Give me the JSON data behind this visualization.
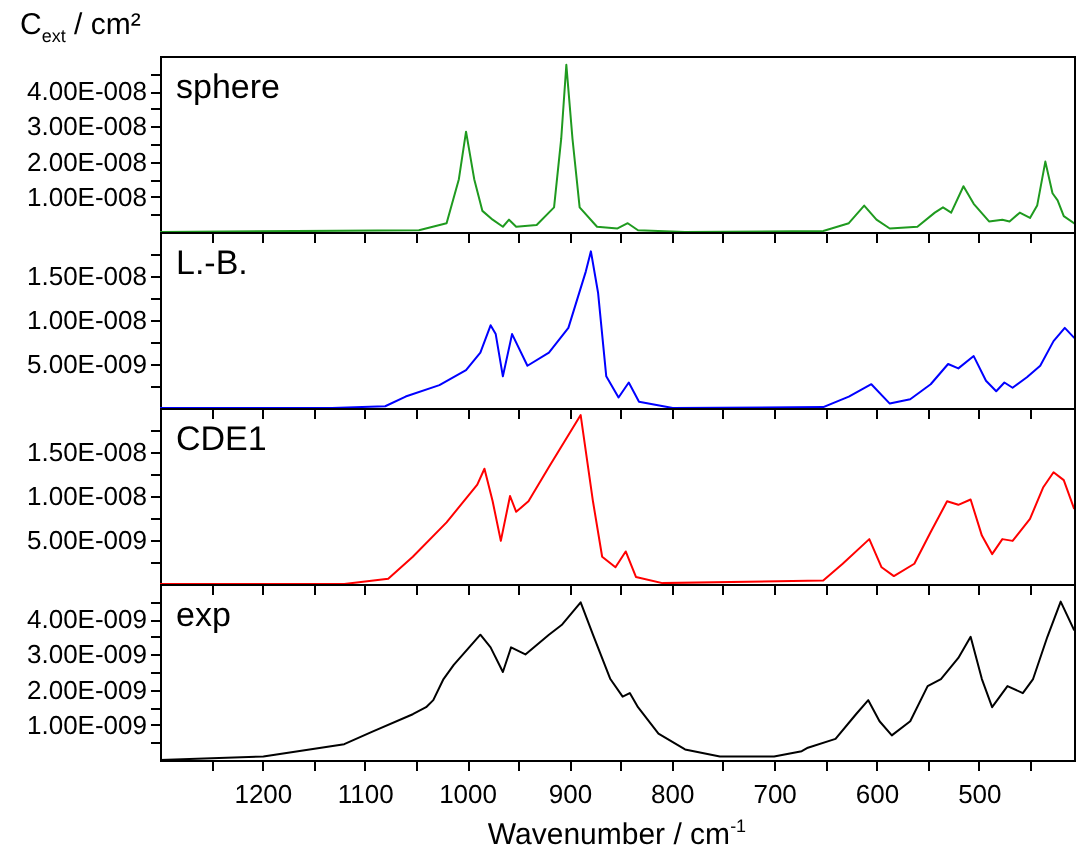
{
  "chart_data": [
    {
      "type": "line",
      "ylabel": "C$_{ext}$ / cm²",
      "xlim": [
        1300,
        407
      ],
      "ylim": [
        0,
        5e-08
      ],
      "tick_labels": "y",
      "line_style": "solid",
      "xticks": [
        1200,
        1100,
        1000,
        900,
        800,
        700,
        600,
        500,
        {
          "value": 1250,
          "label": null
        },
        {
          "value": 1150,
          "label": null
        },
        {
          "value": 1050,
          "label": null
        },
        {
          "value": 950,
          "label": null
        },
        {
          "value": 850,
          "label": null
        },
        {
          "value": 750,
          "label": null
        },
        {
          "value": 650,
          "label": null
        },
        {
          "value": 550,
          "label": null
        },
        {
          "value": 450,
          "label": null
        }
      ],
      "yticks": [
        {
          "value": 1e-08,
          "label": "1.00E-008"
        },
        {
          "value": 2e-08,
          "label": "2.00E-008"
        },
        {
          "value": 3e-08,
          "label": "3.00E-008"
        },
        {
          "value": 4e-08,
          "label": "4.00E-008"
        },
        {
          "value": 5e-09,
          "label": null
        },
        {
          "value": 1.5e-08,
          "label": null
        },
        {
          "value": 2.5e-08,
          "label": null
        },
        {
          "value": 3.5e-08,
          "label": null
        },
        {
          "value": 4.5e-08,
          "label": null
        }
      ],
      "x": [
        1300,
        1047,
        1020,
        1008,
        1001,
        993,
        985,
        975,
        965,
        959,
        952,
        932,
        915,
        908,
        903,
        897,
        890,
        873,
        853,
        843,
        833,
        787,
        652,
        627,
        612,
        600,
        587,
        560,
        543,
        535,
        527,
        515,
        505,
        490,
        477,
        470,
        460,
        450,
        443,
        435,
        428,
        423,
        417,
        407
      ],
      "series": [
        {
          "name": "sphere",
          "color": "#1f9a1f",
          "values": [
            0,
            5e-10,
            2.5e-09,
            1.5e-08,
            2.85e-08,
            1.5e-08,
            6e-09,
            3.5e-09,
            1.5e-09,
            3.5e-09,
            1.5e-09,
            2e-09,
            7e-09,
            2.65e-08,
            4.75e-08,
            2.65e-08,
            7e-09,
            1.5e-09,
            1e-09,
            2.5e-09,
            5e-10,
            0,
            3e-10,
            2.5e-09,
            7.5e-09,
            3.5e-09,
            1e-09,
            1.5e-09,
            5.5e-09,
            7e-09,
            5.5e-09,
            1.3e-08,
            8e-09,
            3e-09,
            3.5e-09,
            3e-09,
            5.5e-09,
            4e-09,
            7.5e-09,
            2e-08,
            1.1e-08,
            9e-09,
            4.5e-09,
            2.5e-09
          ]
        }
      ]
    },
    {
      "type": "line",
      "xlim": [
        1300,
        407
      ],
      "ylim": [
        0,
        2e-08
      ],
      "tick_labels": "y",
      "line_style": "solid",
      "xticks": [
        1200,
        1100,
        1000,
        900,
        800,
        700,
        600,
        500,
        {
          "value": 1250,
          "label": null
        },
        {
          "value": 1150,
          "label": null
        },
        {
          "value": 1050,
          "label": null
        },
        {
          "value": 950,
          "label": null
        },
        {
          "value": 850,
          "label": null
        },
        {
          "value": 750,
          "label": null
        },
        {
          "value": 650,
          "label": null
        },
        {
          "value": 550,
          "label": null
        },
        {
          "value": 450,
          "label": null
        }
      ],
      "yticks": [
        {
          "value": 5e-09,
          "label": "5.00E-009"
        },
        {
          "value": 1e-08,
          "label": "1.00E-008"
        },
        {
          "value": 1.5e-08,
          "label": "1.50E-008"
        },
        {
          "value": 2.5e-09,
          "label": null
        },
        {
          "value": 7.5e-09,
          "label": null
        },
        {
          "value": 1.25e-08,
          "label": null
        },
        {
          "value": 1.75e-08,
          "label": null
        }
      ],
      "x": [
        1300,
        1132,
        1080,
        1060,
        1027,
        1001,
        987,
        977,
        972,
        965,
        956,
        941,
        920,
        901,
        884,
        879,
        872,
        864,
        852,
        842,
        832,
        799,
        652,
        627,
        605,
        587,
        567,
        547,
        530,
        520,
        505,
        493,
        483,
        475,
        467,
        453,
        440,
        427,
        416,
        407
      ],
      "series": [
        {
          "name": "L.-B.",
          "color": "#0000ff",
          "values": [
            0,
            0,
            2e-10,
            1.3e-09,
            2.6e-09,
            4.3e-09,
            6.3e-09,
            9.4e-09,
            8.4e-09,
            3.6e-09,
            8.4e-09,
            4.8e-09,
            6.3e-09,
            9.1e-09,
            1.55e-08,
            1.78e-08,
            1.31e-08,
            3.6e-09,
            1.2e-09,
            2.9e-09,
            7e-10,
            0,
            1e-10,
            1.3e-09,
            2.7e-09,
            5e-10,
            1e-09,
            2.7e-09,
            5e-09,
            4.5e-09,
            5.9e-09,
            3.1e-09,
            1.9e-09,
            2.9e-09,
            2.3e-09,
            3.5e-09,
            4.8e-09,
            7.6e-09,
            9.1e-09,
            8e-09
          ]
        }
      ]
    },
    {
      "type": "line",
      "xlim": [
        1300,
        407
      ],
      "ylim": [
        0,
        2e-08
      ],
      "tick_labels": "y",
      "line_style": "solid",
      "xticks": [
        1200,
        1100,
        1000,
        900,
        800,
        700,
        600,
        500,
        {
          "value": 1250,
          "label": null
        },
        {
          "value": 1150,
          "label": null
        },
        {
          "value": 1050,
          "label": null
        },
        {
          "value": 950,
          "label": null
        },
        {
          "value": 850,
          "label": null
        },
        {
          "value": 750,
          "label": null
        },
        {
          "value": 650,
          "label": null
        },
        {
          "value": 550,
          "label": null
        },
        {
          "value": 450,
          "label": null
        }
      ],
      "yticks": [
        {
          "value": 5e-09,
          "label": "5.00E-009"
        },
        {
          "value": 1e-08,
          "label": "1.00E-008"
        },
        {
          "value": 1.5e-08,
          "label": "1.50E-008"
        },
        {
          "value": 2.5e-09,
          "label": null
        },
        {
          "value": 7.5e-09,
          "label": null
        },
        {
          "value": 1.25e-08,
          "label": null
        },
        {
          "value": 1.75e-08,
          "label": null
        }
      ],
      "x": [
        1300,
        1120,
        1077,
        1053,
        1020,
        990,
        983,
        975,
        967,
        958,
        952,
        940,
        920,
        889,
        877,
        868,
        855,
        845,
        835,
        809,
        652,
        633,
        607,
        595,
        583,
        563,
        547,
        531,
        520,
        508,
        497,
        487,
        477,
        467,
        450,
        437,
        427,
        417,
        407
      ],
      "series": [
        {
          "name": "CDE1",
          "color": "#ff0000",
          "values": [
            0,
            0,
            6e-10,
            3.1e-09,
            7e-09,
            1.13e-08,
            1.31e-08,
            9.4e-09,
            4.9e-09,
            1e-08,
            8.2e-09,
            9.4e-09,
            1.33e-08,
            1.92e-08,
            9.4e-09,
            3.1e-09,
            1.9e-09,
            3.7e-09,
            8e-10,
            1e-10,
            4e-10,
            2.3e-09,
            5.1e-09,
            1.9e-09,
            9e-10,
            2.3e-09,
            5.9e-09,
            9.4e-09,
            9e-09,
            9.6e-09,
            5.5e-09,
            3.4e-09,
            5.1e-09,
            4.9e-09,
            7.4e-09,
            1.1e-08,
            1.27e-08,
            1.18e-08,
            8.6e-09
          ]
        }
      ]
    },
    {
      "type": "line",
      "xlabel": "Wavenumber / cm$^{-1}$",
      "xlim": [
        1300,
        407
      ],
      "ylim": [
        0,
        5e-09
      ],
      "line_style": "solid",
      "xticks": [
        1200,
        1100,
        1000,
        900,
        800,
        700,
        600,
        500,
        {
          "value": 1250,
          "label": null
        },
        {
          "value": 1150,
          "label": null
        },
        {
          "value": 1050,
          "label": null
        },
        {
          "value": 950,
          "label": null
        },
        {
          "value": 850,
          "label": null
        },
        {
          "value": 750,
          "label": null
        },
        {
          "value": 650,
          "label": null
        },
        {
          "value": 550,
          "label": null
        },
        {
          "value": 450,
          "label": null
        }
      ],
      "yticks": [
        {
          "value": 1e-09,
          "label": "1.00E-009"
        },
        {
          "value": 2e-09,
          "label": "2.00E-009"
        },
        {
          "value": 3e-09,
          "label": "3.00E-009"
        },
        {
          "value": 4e-09,
          "label": "4.00E-009"
        },
        {
          "value": 5e-10,
          "label": null
        },
        {
          "value": 1.5e-09,
          "label": null
        },
        {
          "value": 2.5e-09,
          "label": null
        },
        {
          "value": 3.5e-09,
          "label": null
        },
        {
          "value": 4.5e-09,
          "label": null
        }
      ],
      "x": [
        1300,
        1199,
        1120,
        1093,
        1053,
        1040,
        1033,
        1023,
        1013,
        987,
        977,
        965,
        957,
        943,
        920,
        907,
        889,
        877,
        860,
        848,
        841,
        833,
        813,
        787,
        753,
        700,
        673,
        667,
        640,
        620,
        608,
        597,
        585,
        567,
        550,
        537,
        520,
        508,
        497,
        487,
        472,
        457,
        447,
        433,
        420,
        407
      ],
      "series": [
        {
          "name": "exp",
          "color": "#000000",
          "values": [
            0,
            1e-10,
            4.5e-10,
            8e-10,
            1.3e-09,
            1.5e-09,
            1.7e-09,
            2.3e-09,
            2.7e-09,
            3.56e-09,
            3.2e-09,
            2.5e-09,
            3.2e-09,
            3e-09,
            3.56e-09,
            3.85e-09,
            4.48e-09,
            3.56e-09,
            2.3e-09,
            1.8e-09,
            1.9e-09,
            1.5e-09,
            7.5e-10,
            3e-10,
            1e-10,
            1e-10,
            2.5e-10,
            3.5e-10,
            6e-10,
            1.3e-09,
            1.7e-09,
            1.1e-09,
            7e-10,
            1.1e-09,
            2.1e-09,
            2.3e-09,
            2.9e-09,
            3.5e-09,
            2.3e-09,
            1.5e-09,
            2.1e-09,
            1.9e-09,
            2.3e-09,
            3.5e-09,
            4.5e-09,
            3.7e-09
          ]
        }
      ]
    }
  ]
}
